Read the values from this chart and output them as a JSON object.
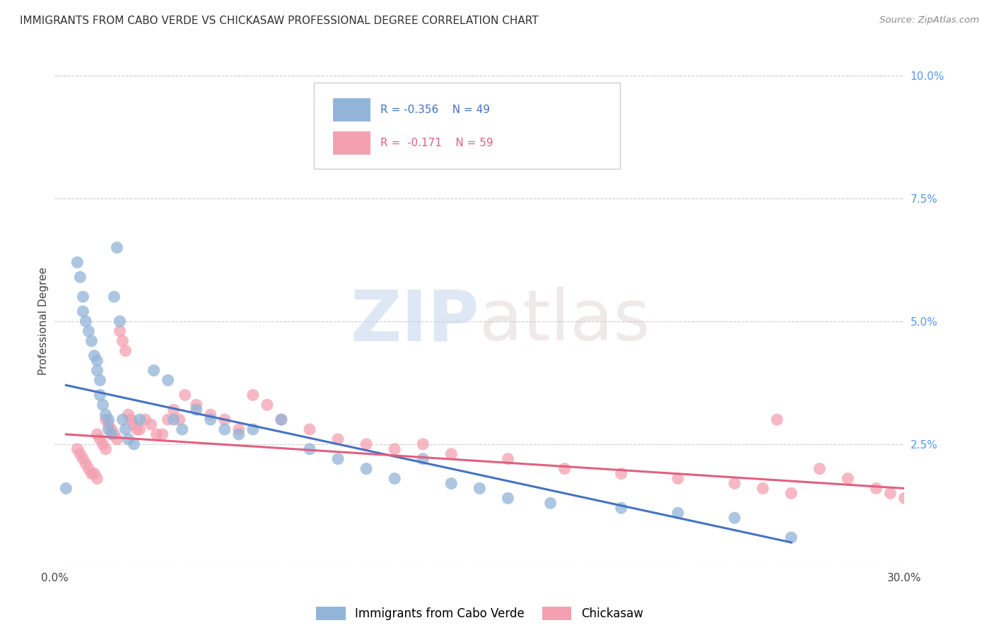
{
  "title": "IMMIGRANTS FROM CABO VERDE VS CHICKASAW PROFESSIONAL DEGREE CORRELATION CHART",
  "source": "Source: ZipAtlas.com",
  "ylabel": "Professional Degree",
  "xlim": [
    0.0,
    0.3
  ],
  "ylim": [
    0.0,
    0.1
  ],
  "x_ticks": [
    0.0,
    0.05,
    0.1,
    0.15,
    0.2,
    0.25,
    0.3
  ],
  "x_tick_labels": [
    "0.0%",
    "",
    "",
    "",
    "",
    "",
    "30.0%"
  ],
  "y_ticks_right": [
    0.0,
    0.025,
    0.05,
    0.075,
    0.1
  ],
  "y_tick_labels_right": [
    "",
    "2.5%",
    "5.0%",
    "7.5%",
    "10.0%"
  ],
  "legend_r1": "-0.356",
  "legend_n1": "49",
  "legend_r2": "-0.171",
  "legend_n2": "59",
  "legend_label1": "Immigrants from Cabo Verde",
  "legend_label2": "Chickasaw",
  "blue_color": "#92B4D8",
  "pink_color": "#F4A0B0",
  "blue_line_color": "#4472C4",
  "pink_line_color": "#E06080",
  "background_color": "#FFFFFF",
  "watermark_zip": "ZIP",
  "watermark_atlas": "atlas",
  "blue_scatter_x": [
    0.004,
    0.008,
    0.009,
    0.01,
    0.01,
    0.011,
    0.012,
    0.013,
    0.014,
    0.015,
    0.015,
    0.016,
    0.016,
    0.017,
    0.018,
    0.019,
    0.019,
    0.02,
    0.021,
    0.022,
    0.023,
    0.024,
    0.025,
    0.026,
    0.028,
    0.03,
    0.035,
    0.04,
    0.042,
    0.045,
    0.05,
    0.055,
    0.06,
    0.065,
    0.07,
    0.08,
    0.09,
    0.1,
    0.11,
    0.12,
    0.13,
    0.14,
    0.15,
    0.16,
    0.175,
    0.2,
    0.22,
    0.24,
    0.26
  ],
  "blue_scatter_y": [
    0.016,
    0.062,
    0.059,
    0.055,
    0.052,
    0.05,
    0.048,
    0.046,
    0.043,
    0.042,
    0.04,
    0.038,
    0.035,
    0.033,
    0.031,
    0.03,
    0.028,
    0.027,
    0.055,
    0.065,
    0.05,
    0.03,
    0.028,
    0.026,
    0.025,
    0.03,
    0.04,
    0.038,
    0.03,
    0.028,
    0.032,
    0.03,
    0.028,
    0.027,
    0.028,
    0.03,
    0.024,
    0.022,
    0.02,
    0.018,
    0.022,
    0.017,
    0.016,
    0.014,
    0.013,
    0.012,
    0.011,
    0.01,
    0.006
  ],
  "pink_scatter_x": [
    0.008,
    0.009,
    0.01,
    0.011,
    0.012,
    0.013,
    0.014,
    0.015,
    0.015,
    0.016,
    0.017,
    0.018,
    0.018,
    0.019,
    0.02,
    0.021,
    0.022,
    0.023,
    0.024,
    0.025,
    0.026,
    0.027,
    0.028,
    0.029,
    0.03,
    0.032,
    0.034,
    0.036,
    0.038,
    0.04,
    0.042,
    0.044,
    0.046,
    0.05,
    0.055,
    0.06,
    0.065,
    0.07,
    0.075,
    0.08,
    0.09,
    0.1,
    0.11,
    0.12,
    0.13,
    0.14,
    0.16,
    0.18,
    0.2,
    0.22,
    0.24,
    0.25,
    0.26,
    0.27,
    0.28,
    0.29,
    0.295,
    0.3,
    0.255
  ],
  "pink_scatter_y": [
    0.024,
    0.023,
    0.022,
    0.021,
    0.02,
    0.019,
    0.019,
    0.018,
    0.027,
    0.026,
    0.025,
    0.024,
    0.03,
    0.029,
    0.028,
    0.027,
    0.026,
    0.048,
    0.046,
    0.044,
    0.031,
    0.03,
    0.029,
    0.028,
    0.028,
    0.03,
    0.029,
    0.027,
    0.027,
    0.03,
    0.032,
    0.03,
    0.035,
    0.033,
    0.031,
    0.03,
    0.028,
    0.035,
    0.033,
    0.03,
    0.028,
    0.026,
    0.025,
    0.024,
    0.025,
    0.023,
    0.022,
    0.02,
    0.019,
    0.018,
    0.017,
    0.016,
    0.015,
    0.02,
    0.018,
    0.016,
    0.015,
    0.014,
    0.03
  ],
  "blue_trendline_x": [
    0.004,
    0.26
  ],
  "blue_trendline_y": [
    0.037,
    0.005
  ],
  "pink_trendline_x": [
    0.004,
    0.3
  ],
  "pink_trendline_y": [
    0.027,
    0.016
  ]
}
